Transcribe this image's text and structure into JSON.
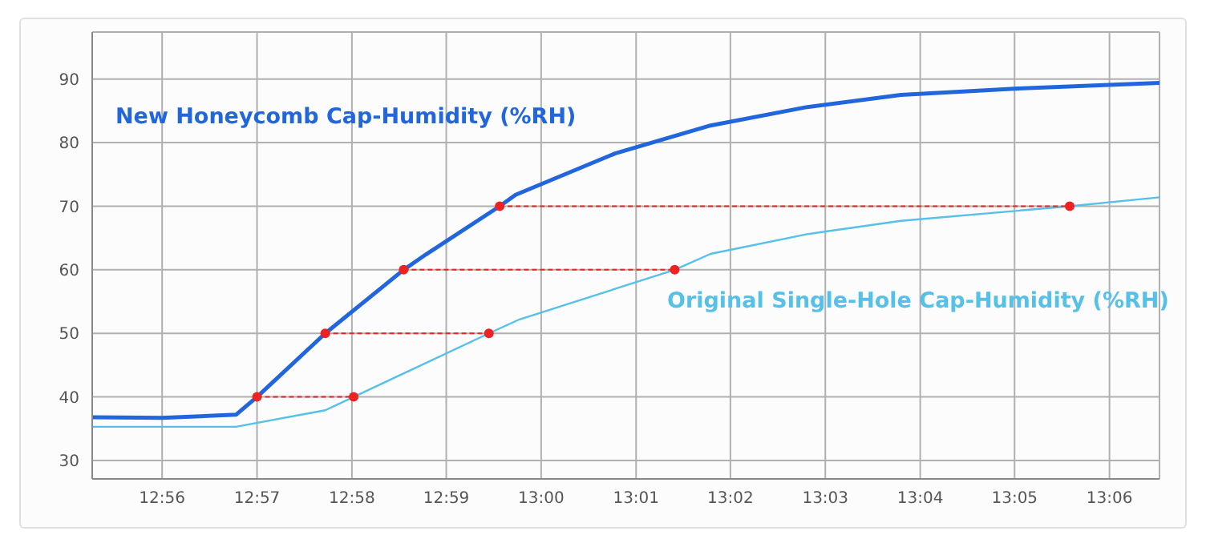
{
  "chart_data": {
    "type": "line",
    "x": [
      12.921,
      12.9333,
      12.9463,
      12.95,
      12.962,
      12.9758,
      12.9797,
      12.9927,
      12.9955,
      13.013,
      13.0298,
      13.0468,
      13.0633,
      13.0833,
      13.1088
    ],
    "series": [
      {
        "name": "New Honeycomb Cap-Humidity (%RH)",
        "color": "#2266dd",
        "values": [
          36.8,
          36.7,
          37.2,
          40,
          50,
          60,
          62.4,
          70,
          71.8,
          78.3,
          82.7,
          85.6,
          87.5,
          88.5,
          89.4
        ]
      },
      {
        "name": "Original Single-Hole Cap-Humidity (%RH)",
        "color": "#55c0e8",
        "x": [
          12.921,
          12.9463,
          12.962,
          12.967,
          12.9908,
          12.9962,
          13.0235,
          13.0298,
          13.0468,
          13.0633,
          13.093,
          13.1088
        ],
        "values": [
          35.3,
          35.3,
          37.9,
          40,
          50,
          52.2,
          60,
          62.5,
          65.6,
          67.7,
          70,
          71.4
        ]
      },
      {
        "color": "#ee2222",
        "x": [
          12.95,
          12.967
        ],
        "values": [
          40,
          40
        ],
        "line_style": "dashed",
        "marker": "circle"
      },
      {
        "color": "#ee2222",
        "x": [
          12.962,
          12.9908
        ],
        "values": [
          50,
          50
        ],
        "line_style": "dashed",
        "marker": "circle"
      },
      {
        "color": "#ee2222",
        "x": [
          12.9758,
          13.0235
        ],
        "values": [
          60,
          60
        ],
        "line_style": "dashed",
        "marker": "circle"
      },
      {
        "color": "#ee2222",
        "x": [
          12.9927,
          13.093
        ],
        "values": [
          70,
          70
        ],
        "line_style": "dashed",
        "marker": "circle"
      }
    ],
    "xlim": [
      12.921,
      13.1088
    ],
    "xticks": [
      {
        "value": 12.9333,
        "label": "12:56"
      },
      {
        "value": 12.95,
        "label": "12:57"
      },
      {
        "value": 12.9667,
        "label": "12:58"
      },
      {
        "value": 12.9833,
        "label": "12:59"
      },
      {
        "value": 13,
        "label": "13:00"
      },
      {
        "value": 13.0167,
        "label": "13:01"
      },
      {
        "value": 13.0333,
        "label": "13:02"
      },
      {
        "value": 13.05,
        "label": "13:03"
      },
      {
        "value": 13.0667,
        "label": "13:04"
      },
      {
        "value": 13.0833,
        "label": "13:05"
      },
      {
        "value": 13.1,
        "label": "13:06"
      }
    ],
    "ylim": [
      27.1,
      97.4
    ],
    "yticks": [
      30,
      40,
      50,
      60,
      70,
      80,
      90
    ],
    "grid": true,
    "marker": "none",
    "line_style": "solid"
  }
}
